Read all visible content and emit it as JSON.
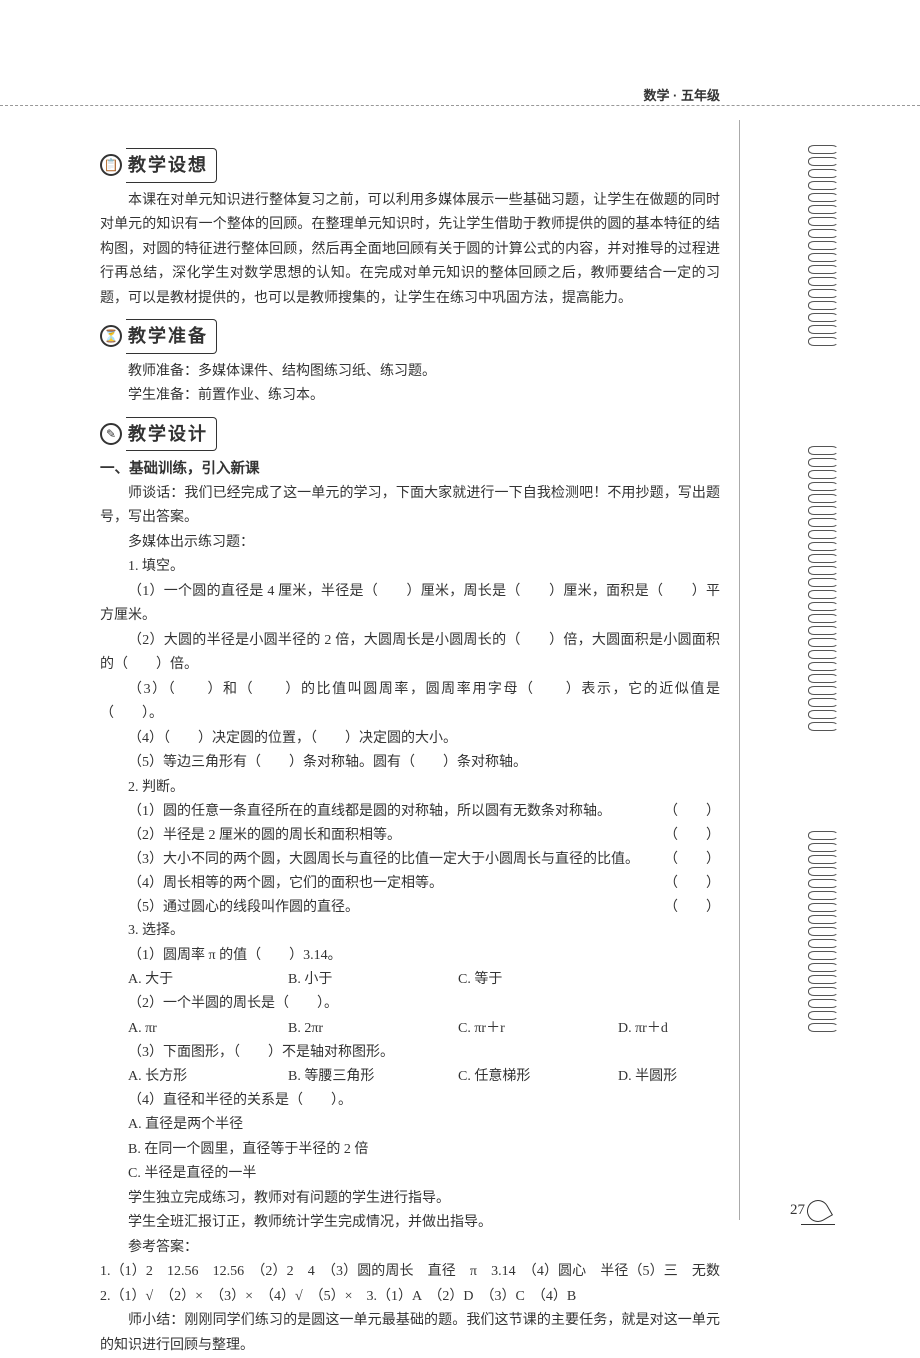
{
  "header": {
    "subject_grade": "数学 · 五年级"
  },
  "sections": {
    "s1": {
      "title": "教学设想",
      "icon": "📋"
    },
    "s2": {
      "title": "教学准备",
      "icon": "⏳"
    },
    "s3": {
      "title": "教学设计",
      "icon": "✎"
    }
  },
  "s1_body": "本课在对单元知识进行整体复习之前，可以利用多媒体展示一些基础习题，让学生在做题的同时对单元的知识有一个整体的回顾。在整理单元知识时，先让学生借助于教师提供的圆的基本特征的结构图，对圆的特征进行整体回顾，然后再全面地回顾有关于圆的计算公式的内容，并对推导的过程进行再总结，深化学生对数学思想的认知。在完成对单元知识的整体回顾之后，教师要结合一定的习题，可以是教材提供的，也可以是教师搜集的，让学生在练习中巩固方法，提高能力。",
  "s2": {
    "teacher": "教师准备：多媒体课件、结构图练习纸、练习题。",
    "student": "学生准备：前置作业、练习本。"
  },
  "s3": {
    "h1": "一、基础训练，引入新课",
    "talk": "师谈话：我们已经完成了这一单元的学习，下面大家就进行一下自我检测吧！不用抄题，写出题号，写出答案。",
    "mm": "多媒体出示练习题：",
    "fill_h": "1. 填空。",
    "fill": {
      "q1": "（1）一个圆的直径是 4 厘米，半径是（　　）厘米，周长是（　　）厘米，面积是（　　）平方厘米。",
      "q2": "（2）大圆的半径是小圆半径的 2 倍，大圆周长是小圆周长的（　　）倍，大圆面积是小圆面积的（　　）倍。",
      "q3": "（3）（　　）和（　　）的比值叫圆周率，圆周率用字母（　　）表示，它的近似值是（　　）。",
      "q4": "（4）（　　）决定圆的位置，（　　）决定圆的大小。",
      "q5": "（5）等边三角形有（　　）条对称轴。圆有（　　）条对称轴。"
    },
    "judge_h": "2. 判断。",
    "judge": {
      "q1": "（1）圆的任意一条直径所在的直线都是圆的对称轴，所以圆有无数条对称轴。",
      "q2": "（2）半径是 2 厘米的圆的周长和面积相等。",
      "q3": "（3）大小不同的两个圆，大圆周长与直径的比值一定大于小圆周长与直径的比值。",
      "q4": "（4）周长相等的两个圆，它们的面积也一定相等。",
      "q5": "（5）通过圆心的线段叫作圆的直径。"
    },
    "paren": "（　　）",
    "choice_h": "3. 选择。",
    "c1": {
      "stem": "（1）圆周率 π 的值（　　）3.14。",
      "a": "A. 大于",
      "b": "B. 小于",
      "c": "C. 等于"
    },
    "c2": {
      "stem": "（2）一个半圆的周长是（　　）。",
      "a": "A. πr",
      "b": "B. 2πr",
      "c": "C. πr＋r",
      "d": "D. πr＋d"
    },
    "c3": {
      "stem": "（3）下面图形，（　　）不是轴对称图形。",
      "a": "A. 长方形",
      "b": "B. 等腰三角形",
      "c": "C. 任意梯形",
      "d": "D. 半圆形"
    },
    "c4": {
      "stem": "（4）直径和半径的关系是（　　）。",
      "a": "A. 直径是两个半径",
      "b": "B. 在同一个圆里，直径等于半径的 2 倍",
      "c": "C. 半径是直径的一半"
    },
    "after1": "学生独立完成练习，教师对有问题的学生进行指导。",
    "after2": "学生全班汇报订正，教师统计学生完成情况，并做出指导。",
    "ans_h": "参考答案：",
    "ans1": "1.（1）2　12.56　12.56　（2）2　4　（3）圆的周长　直径　π　3.14　（4）圆心　半径（5）三　无数　2.（1）√　（2）×　（3）×　（4）√　（5）×　3.（1）A　（2）D　（3）C　（4）B",
    "summary": "师小结：刚刚同学们练习的是圆这一单元最基础的题。我们这节课的主要任务，就是对这一单元的知识进行回顾与整理。"
  },
  "page_number": "27"
}
